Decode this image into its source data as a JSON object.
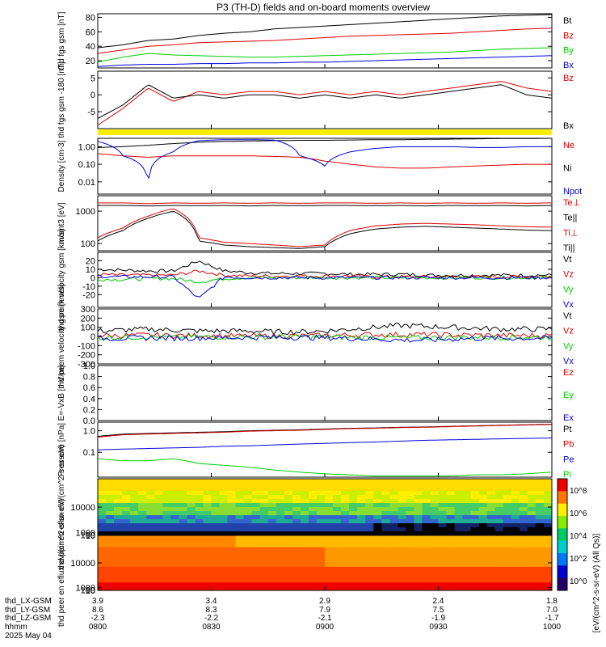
{
  "title": "P3 (TH-D) fields and on-board moments overview",
  "colors": {
    "black": "#000000",
    "red": "#dd0000",
    "green": "#00cc00",
    "blue": "#0000dd",
    "yellow": "#ffee00"
  },
  "time_axis": {
    "ticks": [
      {
        "lx": "3.9",
        "ly": "8.6",
        "lz": "-2.3",
        "hhmm": "0800"
      },
      {
        "lx": "3.4",
        "ly": "8.3",
        "lz": "-2.2",
        "hhmm": "0830"
      },
      {
        "lx": "2.9",
        "ly": "7.9",
        "lz": "-2.1",
        "hhmm": "0900"
      },
      {
        "lx": "2.4",
        "ly": "7.5",
        "lz": "-1.9",
        "hhmm": "0930"
      },
      {
        "lx": "1.8",
        "ly": "7.0",
        "lz": "-1.7",
        "hhmm": "1000"
      }
    ],
    "row_labels": [
      "thd_LX-GSM",
      "thd_LY-GSM",
      "thd_LZ-GSM",
      "hhmm"
    ],
    "date": "2025 May 04"
  },
  "chart_data": [
    {
      "type": "line",
      "ylabel": "thd fgs gsm [nT]",
      "ylim": [
        10,
        85
      ],
      "yticks": [
        "80",
        "60",
        "40",
        "20"
      ],
      "series": [
        {
          "name": "Bt",
          "color": "#000000",
          "values": [
            38,
            42,
            48,
            50,
            55,
            58,
            60,
            64,
            66,
            68,
            70,
            72,
            74,
            76,
            78,
            80,
            82,
            83,
            84
          ]
        },
        {
          "name": "Bz",
          "color": "#dd0000",
          "values": [
            30,
            35,
            40,
            42,
            45,
            46,
            47,
            48,
            50,
            52,
            54,
            55,
            56,
            57,
            58,
            60,
            62,
            64,
            65
          ]
        },
        {
          "name": "By",
          "color": "#00cc00",
          "values": [
            18,
            25,
            30,
            28,
            27,
            26,
            25,
            25,
            26,
            27,
            28,
            29,
            30,
            31,
            32,
            34,
            36,
            37,
            38
          ]
        },
        {
          "name": "Bx",
          "color": "#0000dd",
          "values": [
            12,
            14,
            15,
            15,
            16,
            16,
            17,
            17,
            18,
            18,
            19,
            20,
            21,
            22,
            23,
            24,
            25,
            26,
            27
          ]
        }
      ]
    },
    {
      "type": "line",
      "ylabel": "thd fgs gsm -180 [nT]",
      "ylim": [
        -10,
        7
      ],
      "yticks": [
        "5",
        "0",
        "-5"
      ],
      "series": [
        {
          "name": "Bz",
          "color": "#dd0000",
          "values": [
            -9,
            -4,
            2,
            -2,
            1,
            0,
            1,
            1,
            0,
            1,
            0,
            1,
            0,
            1,
            2,
            3,
            4,
            2,
            1
          ]
        },
        {
          "name": "Bx",
          "color": "#000000",
          "values": [
            -7,
            -3,
            3,
            -1,
            0,
            -1,
            0,
            0,
            -1,
            0,
            -1,
            0,
            -1,
            0,
            1,
            2,
            3,
            0,
            -1
          ]
        }
      ]
    },
    {
      "type": "line",
      "ylabel": "Density [cm-3]",
      "log": true,
      "ylim": [
        0.002,
        3
      ],
      "yticks": [
        "1.00",
        "0.10",
        "0.01"
      ],
      "series": [
        {
          "name": "Ne",
          "color": "#dd0000",
          "values": [
            0.4,
            0.3,
            0.25,
            0.3,
            0.3,
            0.3,
            0.3,
            0.28,
            0.25,
            0.15,
            0.1,
            0.07,
            0.06,
            0.06,
            0.07,
            0.08,
            0.09,
            0.1,
            0.1
          ]
        },
        {
          "name": "Ni",
          "color": "#000000",
          "values": [
            0.9,
            1,
            1.2,
            1.5,
            1.8,
            2,
            2.1,
            2.2,
            2.3,
            2.3,
            2.4,
            2.5,
            2.5,
            2.6,
            2.7,
            2.8,
            2.9,
            2.9,
            3
          ]
        },
        {
          "name": "Npot",
          "color": "#0000dd",
          "values": [
            2,
            0.3,
            0.004,
            0.5,
            2.2,
            2.5,
            2.5,
            2.4,
            0.3,
            0.08,
            0.5,
            0.8,
            1,
            1,
            1,
            0.9,
            0.9,
            1,
            1
          ]
        }
      ]
    },
    {
      "type": "line",
      "ylabel": "momt3 [eV]",
      "log": true,
      "ylim": [
        60,
        3000
      ],
      "yticks": [
        "1000",
        "100"
      ],
      "series": [
        {
          "name": "Te⊥",
          "color": "#dd0000",
          "values": [
            1800,
            1800,
            1700,
            1800,
            1750,
            1800,
            1750,
            1800,
            1750,
            1800,
            1800,
            1750,
            1800,
            1750,
            1800,
            1750,
            1800,
            1750,
            1800
          ]
        },
        {
          "name": "Te||",
          "color": "#000000",
          "values": [
            1500,
            1500,
            1450,
            1500,
            1480,
            1500,
            1450,
            1500,
            1480,
            1500,
            1500,
            1480,
            1500,
            1450,
            1500,
            1480,
            1500,
            1450,
            1500
          ]
        },
        {
          "name": "Ti⊥",
          "color": "#dd0000",
          "values": [
            150,
            300,
            700,
            1200,
            150,
            110,
            100,
            90,
            80,
            90,
            250,
            350,
            400,
            420,
            400,
            380,
            350,
            330,
            320
          ]
        },
        {
          "name": "Ti||",
          "color": "#000000",
          "values": [
            120,
            250,
            600,
            1000,
            120,
            90,
            80,
            75,
            70,
            80,
            200,
            280,
            320,
            340,
            320,
            300,
            280,
            260,
            250
          ]
        }
      ]
    },
    {
      "type": "line",
      "ylabel": "thd peim velocity gsm [km/s]",
      "ylim": [
        -35,
        30
      ],
      "yticks": [
        "20",
        "10",
        "0",
        "-10",
        "-20"
      ],
      "series": [
        {
          "name": "Vt",
          "color": "#000000",
          "values": [
            10,
            9,
            8,
            8,
            20,
            8,
            6,
            5,
            5,
            5,
            4,
            4,
            4,
            3,
            3,
            3,
            3,
            3,
            3
          ]
        },
        {
          "name": "Vz",
          "color": "#dd0000",
          "values": [
            4,
            3,
            3,
            3,
            8,
            3,
            2,
            2,
            2,
            2,
            2,
            1,
            1,
            1,
            1,
            1,
            1,
            1,
            1
          ]
        },
        {
          "name": "Vy",
          "color": "#00cc00",
          "values": [
            -2,
            -2,
            -1,
            -1,
            -5,
            -1,
            0,
            0,
            0,
            0,
            0,
            0,
            0,
            0,
            0,
            0,
            0,
            0,
            0
          ]
        },
        {
          "name": "Vx",
          "color": "#0000dd",
          "values": [
            2,
            1,
            1,
            1,
            -25,
            1,
            0,
            0,
            0,
            0,
            0,
            0,
            0,
            0,
            0,
            0,
            0,
            0,
            0
          ]
        }
      ]
    },
    {
      "type": "line",
      "ylabel": "thd peem velocity gsm [km/s]",
      "ylim": [
        -300,
        300
      ],
      "yticks": [
        "300",
        "200",
        "100",
        "0",
        "-100",
        "-200",
        "-300"
      ],
      "series": [
        {
          "name": "Vt",
          "color": "#000000",
          "values": [
            60,
            70,
            80,
            70,
            60,
            60,
            60,
            50,
            50,
            60,
            80,
            100,
            120,
            110,
            100,
            90,
            80,
            80,
            80
          ]
        },
        {
          "name": "Vz",
          "color": "#dd0000",
          "values": [
            10,
            10,
            15,
            10,
            10,
            5,
            5,
            5,
            5,
            10,
            15,
            20,
            20,
            20,
            15,
            15,
            10,
            10,
            10
          ]
        },
        {
          "name": "Vy",
          "color": "#00cc00",
          "values": [
            -10,
            -10,
            -5,
            -10,
            -5,
            -5,
            -5,
            -5,
            -5,
            -5,
            -10,
            -10,
            -15,
            -15,
            -10,
            -10,
            -10,
            -10,
            -10
          ]
        },
        {
          "name": "Vx",
          "color": "#0000dd",
          "values": [
            -20,
            -20,
            -15,
            -20,
            -15,
            -15,
            -10,
            -10,
            -10,
            -15,
            -20,
            -30,
            -40,
            -40,
            -30,
            -20,
            -20,
            -20,
            -20
          ]
        }
      ]
    },
    {
      "type": "line",
      "ylabel": "E=-VxB [mV/m]",
      "ylim": [
        0,
        1
      ],
      "yticks": [
        "1.0",
        "0.8",
        "0.6",
        "0.4",
        "0.2",
        "0.0"
      ],
      "series": [
        {
          "name": "Ez",
          "color": "#dd0000",
          "values": []
        },
        {
          "name": "Ey",
          "color": "#00cc00",
          "values": []
        },
        {
          "name": "Ex",
          "color": "#0000dd",
          "values": []
        }
      ]
    },
    {
      "type": "line",
      "ylabel": "Pressure [nPa]",
      "log": true,
      "ylim": [
        0.007,
        2.5
      ],
      "yticks": [
        "1.0",
        "0.1"
      ],
      "series": [
        {
          "name": "Pt",
          "color": "#000000",
          "values": [
            0.55,
            0.7,
            0.75,
            0.8,
            0.85,
            0.9,
            1,
            1.05,
            1.1,
            1.2,
            1.3,
            1.35,
            1.45,
            1.5,
            1.6,
            1.7,
            1.8,
            1.9,
            2
          ]
        },
        {
          "name": "Pb",
          "color": "#dd0000",
          "values": [
            0.5,
            0.65,
            0.7,
            0.75,
            0.8,
            0.85,
            0.95,
            1,
            1.05,
            1.15,
            1.25,
            1.3,
            1.4,
            1.45,
            1.55,
            1.65,
            1.75,
            1.85,
            1.95
          ]
        },
        {
          "name": "Pe",
          "color": "#0000dd",
          "values": [
            0.13,
            0.14,
            0.15,
            0.16,
            0.17,
            0.19,
            0.2,
            0.22,
            0.24,
            0.26,
            0.28,
            0.3,
            0.33,
            0.36,
            0.38,
            0.4,
            0.42,
            0.44,
            0.46
          ]
        },
        {
          "name": "Pi",
          "color": "#00cc00",
          "values": [
            0.05,
            0.04,
            0.04,
            0.05,
            0.03,
            0.025,
            0.02,
            0.015,
            0.012,
            0.01,
            0.009,
            0.008,
            0.008,
            0.008,
            0.008,
            0.009,
            0.009,
            0.01,
            0.012
          ]
        }
      ]
    },
    {
      "type": "heatmap",
      "ylabel": "thd peir en eflux eV/(cm^2-s-sr-eV)",
      "ylim": [
        8,
        20000
      ],
      "yticks": [
        "10000",
        "1000",
        "100",
        "10"
      ]
    },
    {
      "type": "heatmap",
      "ylabel": "thd peer en eflux eV/(cm^2-s-sr-eV)",
      "ylim": [
        8,
        20000
      ],
      "yticks": [
        "10000",
        "1000",
        "100",
        "10"
      ]
    }
  ],
  "colorbar": {
    "label": "[eV/(cm^2-s-sr-eV) (All Qs)]",
    "ticks": [
      "10^8",
      "10^6",
      "10^4",
      "10^2",
      "10^0"
    ]
  }
}
